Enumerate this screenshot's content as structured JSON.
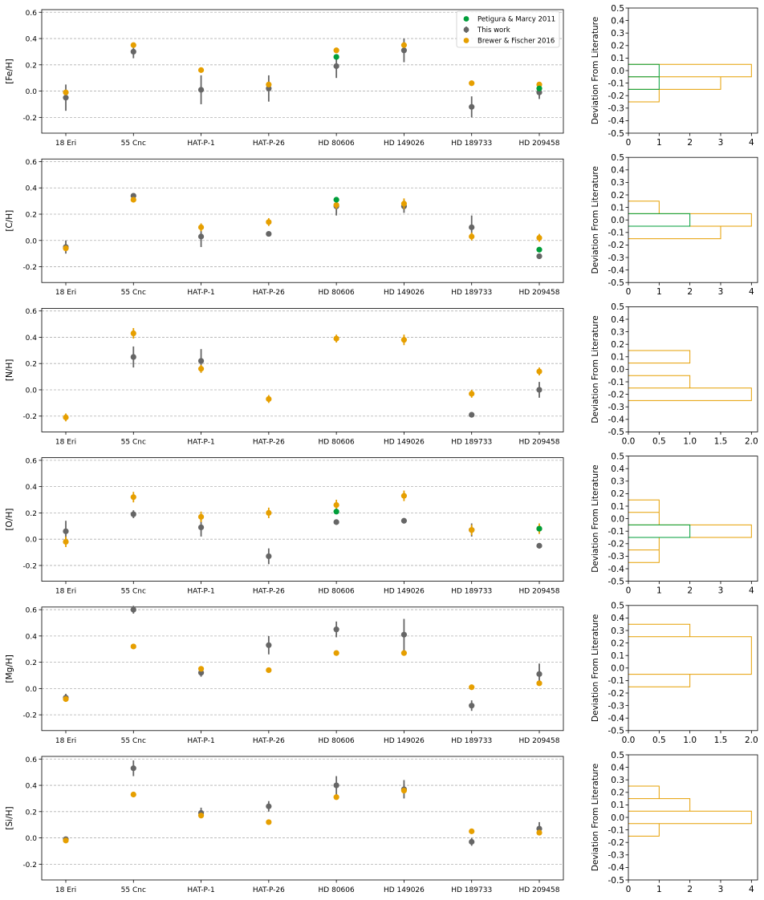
{
  "chart_data": {
    "type": "scatter",
    "stars": [
      "18 Eri",
      "55 Cnc",
      "HAT-P-1",
      "HAT-P-26",
      "HD 80606",
      "HD 149026",
      "HD 189733",
      "HD 209458"
    ],
    "colors": {
      "this_work": "#666666",
      "brewer": "#e69f00",
      "petigura": "#009e3a"
    },
    "legend": [
      {
        "key": "petigura",
        "label": "Petigura & Marcy 2011"
      },
      {
        "key": "this_work",
        "label": "This work"
      },
      {
        "key": "brewer",
        "label": "Brewer & Fischer 2016"
      }
    ],
    "scatter_ylim": [
      -0.32,
      0.62
    ],
    "scatter_yticks": [
      -0.2,
      0.0,
      0.2,
      0.4,
      0.6
    ],
    "hist_ylabel": "Deviation From Literature",
    "hist_ylim": [
      -0.5,
      0.5
    ],
    "hist_yticks": [
      -0.5,
      -0.4,
      -0.3,
      -0.2,
      -0.1,
      0.0,
      0.1,
      0.2,
      0.3,
      0.4,
      0.5
    ],
    "panels": [
      {
        "ylabel": "[Fe/H]",
        "this_work": [
          [
            -0.05,
            0.1
          ],
          [
            0.3,
            0.05
          ],
          [
            0.01,
            0.11
          ],
          [
            0.02,
            0.1
          ],
          [
            0.19,
            0.09
          ],
          [
            0.31,
            0.09
          ],
          [
            -0.12,
            0.08
          ],
          [
            -0.01,
            0.05
          ]
        ],
        "brewer": [
          [
            -0.01,
            0.01
          ],
          [
            0.35,
            0.01
          ],
          [
            0.16,
            0.01
          ],
          [
            0.05,
            0.01
          ],
          [
            0.31,
            0.01
          ],
          [
            0.35,
            0.01
          ],
          [
            0.06,
            0.01
          ],
          [
            0.05,
            0.01
          ]
        ],
        "petigura": [
          null,
          null,
          null,
          null,
          [
            0.26,
            0.01
          ],
          null,
          null,
          [
            0.02,
            0.01
          ]
        ],
        "hist_xlim": [
          0,
          4.2
        ],
        "hist_xticks": [
          "0",
          "1",
          "2",
          "3",
          "4"
        ],
        "hist_xtick_vals": [
          0,
          1,
          2,
          3,
          4
        ],
        "hist": [
          {
            "source": "brewer",
            "bins": [
              -0.25,
              -0.15,
              -0.05,
              0.05
            ],
            "counts": [
              1,
              3,
              4
            ]
          },
          {
            "source": "petigura",
            "bins": [
              -0.15,
              -0.05,
              0.05
            ],
            "counts": [
              1,
              1
            ]
          }
        ]
      },
      {
        "ylabel": "[C/H]",
        "this_work": [
          [
            -0.05,
            0.05
          ],
          [
            0.34,
            0.01
          ],
          [
            0.03,
            0.08
          ],
          [
            0.05,
            0.02
          ],
          [
            0.26,
            0.07
          ],
          [
            0.26,
            0.05
          ],
          [
            0.1,
            0.09
          ],
          [
            -0.12,
            0.02
          ]
        ],
        "brewer": [
          [
            -0.06,
            0.02
          ],
          [
            0.31,
            0.02
          ],
          [
            0.1,
            0.03
          ],
          [
            0.14,
            0.03
          ],
          [
            0.27,
            0.03
          ],
          [
            0.28,
            0.04
          ],
          [
            0.03,
            0.03
          ],
          [
            0.02,
            0.03
          ]
        ],
        "petigura": [
          null,
          null,
          null,
          null,
          [
            0.31,
            0.01
          ],
          null,
          null,
          [
            -0.07,
            0.01
          ]
        ],
        "hist_xlim": [
          0,
          4.2
        ],
        "hist_xticks": [
          "0",
          "1",
          "2",
          "3",
          "4"
        ],
        "hist_xtick_vals": [
          0,
          1,
          2,
          3,
          4
        ],
        "hist": [
          {
            "source": "brewer",
            "bins": [
              -0.15,
              -0.05,
              0.05,
              0.15
            ],
            "counts": [
              3,
              4,
              1
            ]
          },
          {
            "source": "petigura",
            "bins": [
              -0.05,
              0.05
            ],
            "counts": [
              2
            ]
          }
        ]
      },
      {
        "ylabel": "[N/H]",
        "this_work": [
          null,
          [
            0.25,
            0.08
          ],
          [
            0.22,
            0.09
          ],
          null,
          null,
          null,
          [
            -0.19,
            0.02
          ],
          [
            0.0,
            0.06
          ]
        ],
        "brewer": [
          [
            -0.21,
            0.03
          ],
          [
            0.43,
            0.04
          ],
          [
            0.16,
            0.03
          ],
          [
            -0.07,
            0.03
          ],
          [
            0.39,
            0.03
          ],
          [
            0.38,
            0.04
          ],
          [
            -0.03,
            0.03
          ],
          [
            0.14,
            0.03
          ]
        ],
        "petigura": [
          null,
          null,
          null,
          null,
          null,
          null,
          null,
          null
        ],
        "hist_xlim": [
          0,
          2.1
        ],
        "hist_xticks": [
          "0.0",
          "0.5",
          "1.0",
          "1.5",
          "2.0"
        ],
        "hist_xtick_vals": [
          0,
          0.5,
          1,
          1.5,
          2
        ],
        "hist": [
          {
            "source": "brewer",
            "bins": [
              -0.25,
              -0.15,
              -0.05,
              0.05,
              0.15
            ],
            "counts": [
              2,
              1,
              0,
              1
            ]
          }
        ]
      },
      {
        "ylabel": "[O/H]",
        "this_work": [
          [
            0.06,
            0.08
          ],
          [
            0.19,
            0.03
          ],
          [
            0.09,
            0.07
          ],
          [
            -0.13,
            0.06
          ],
          [
            0.13,
            0.02
          ],
          [
            0.14,
            0.02
          ],
          [
            0.07,
            0.05
          ],
          [
            -0.05,
            0.02
          ]
        ],
        "brewer": [
          [
            -0.02,
            0.04
          ],
          [
            0.32,
            0.04
          ],
          [
            0.17,
            0.04
          ],
          [
            0.2,
            0.04
          ],
          [
            0.26,
            0.04
          ],
          [
            0.33,
            0.04
          ],
          [
            0.07,
            0.04
          ],
          [
            0.08,
            0.04
          ]
        ],
        "petigura": [
          null,
          null,
          null,
          null,
          [
            0.21,
            0.01
          ],
          null,
          null,
          [
            0.08,
            0.01
          ]
        ],
        "hist_xlim": [
          0,
          4.2
        ],
        "hist_xticks": [
          "0",
          "1",
          "2",
          "3",
          "4"
        ],
        "hist_xtick_vals": [
          0,
          1,
          2,
          3,
          4
        ],
        "hist": [
          {
            "source": "brewer",
            "bins": [
              -0.35,
              -0.25,
              -0.15,
              -0.05,
              0.05,
              0.15
            ],
            "counts": [
              1,
              1,
              4,
              1,
              1
            ]
          },
          {
            "source": "petigura",
            "bins": [
              -0.15,
              -0.05
            ],
            "counts": [
              2
            ]
          }
        ]
      },
      {
        "ylabel": "[Mg/H]",
        "this_work": [
          [
            -0.07,
            0.03
          ],
          [
            0.6,
            0.03
          ],
          [
            0.12,
            0.03
          ],
          [
            0.33,
            0.07
          ],
          [
            0.45,
            0.06
          ],
          [
            0.41,
            0.12
          ],
          [
            -0.13,
            0.04
          ],
          [
            0.11,
            0.08
          ]
        ],
        "brewer": [
          [
            -0.08,
            0.01
          ],
          [
            0.32,
            0.01
          ],
          [
            0.15,
            0.01
          ],
          [
            0.14,
            0.01
          ],
          [
            0.27,
            0.01
          ],
          [
            0.27,
            0.01
          ],
          [
            0.01,
            0.01
          ],
          [
            0.04,
            0.01
          ]
        ],
        "petigura": [
          null,
          null,
          null,
          null,
          null,
          null,
          null,
          null
        ],
        "hist_xlim": [
          0,
          2.1
        ],
        "hist_xticks": [
          "0.0",
          "0.5",
          "1.0",
          "1.5",
          "2.0"
        ],
        "hist_xtick_vals": [
          0,
          0.5,
          1,
          1.5,
          2
        ],
        "hist": [
          {
            "source": "brewer",
            "bins": [
              -0.15,
              -0.05,
              0.25,
              0.35
            ],
            "counts": [
              1,
              2,
              1
            ]
          }
        ]
      },
      {
        "ylabel": "[Si/H]",
        "this_work": [
          [
            -0.01,
            0.02
          ],
          [
            0.53,
            0.06
          ],
          [
            0.19,
            0.04
          ],
          [
            0.24,
            0.04
          ],
          [
            0.4,
            0.07
          ],
          [
            0.37,
            0.07
          ],
          [
            -0.03,
            0.03
          ],
          [
            0.07,
            0.05
          ]
        ],
        "brewer": [
          [
            -0.02,
            0.01
          ],
          [
            0.33,
            0.01
          ],
          [
            0.17,
            0.01
          ],
          [
            0.12,
            0.01
          ],
          [
            0.31,
            0.01
          ],
          [
            0.36,
            0.01
          ],
          [
            0.05,
            0.01
          ],
          [
            0.04,
            0.01
          ]
        ],
        "petigura": [
          null,
          null,
          null,
          null,
          null,
          null,
          null,
          null
        ],
        "hist_xlim": [
          0,
          4.2
        ],
        "hist_xticks": [
          "0",
          "1",
          "2",
          "3",
          "4"
        ],
        "hist_xtick_vals": [
          0,
          1,
          2,
          3,
          4
        ],
        "hist": [
          {
            "source": "brewer",
            "bins": [
              -0.15,
              -0.05,
              0.05,
              0.15,
              0.25
            ],
            "counts": [
              1,
              4,
              2,
              1
            ]
          }
        ]
      }
    ]
  }
}
